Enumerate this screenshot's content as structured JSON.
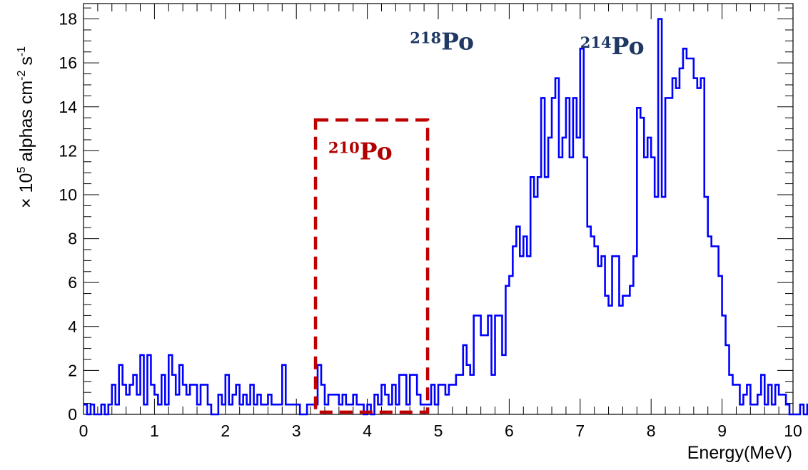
{
  "chart_data": {
    "type": "histogram",
    "xlabel": "Energy(MeV)",
    "ylabel": {
      "prefix": "× 10",
      "exp": "5",
      "unit": " alphas cm",
      "unit_exp": "-2",
      "unit2": " s",
      "unit2_exp": "-1"
    },
    "xlim": [
      0,
      10
    ],
    "ylim": [
      0,
      18.7
    ],
    "x_ticks": [
      0,
      1,
      2,
      3,
      4,
      5,
      6,
      7,
      8,
      9,
      10
    ],
    "y_ticks": [
      0,
      2,
      4,
      6,
      8,
      10,
      12,
      14,
      16,
      18
    ],
    "bin_width": 0.05,
    "series": [
      {
        "color": "#0000ff",
        "values": [
          0.45,
          0,
          0.45,
          0,
          0,
          0.45,
          0,
          0.45,
          1.35,
          0.45,
          2.25,
          1.35,
          0.9,
          1.35,
          1.8,
          0.9,
          2.7,
          0.45,
          2.7,
          1.35,
          0.9,
          0.45,
          1.8,
          0.45,
          2.7,
          1.8,
          0.9,
          2.25,
          1.35,
          0.9,
          1.35,
          1.35,
          0.45,
          1.35,
          1.35,
          0.45,
          0,
          0,
          0.9,
          0.45,
          1.8,
          0.45,
          0.9,
          1.35,
          0.45,
          0.9,
          0.45,
          1.35,
          0.45,
          0.9,
          0.45,
          0.45,
          0.9,
          0.45,
          0.45,
          0.45,
          2.25,
          0.45,
          0.45,
          0.45,
          0.45,
          0,
          0,
          0.45,
          0.45,
          0.45,
          2.25,
          1.35,
          0.45,
          0.9,
          0.9,
          0.9,
          0.45,
          0.9,
          0.45,
          0.45,
          0.9,
          0.45,
          0.45,
          0,
          0.45,
          0,
          0.9,
          0.45,
          1.35,
          0.9,
          0.45,
          1.35,
          0.45,
          1.8,
          1.8,
          0.45,
          1.8,
          1.8,
          0.9,
          0.45,
          0.45,
          0.45,
          1.35,
          0.45,
          1.35,
          1.35,
          0.9,
          1.35,
          1.35,
          1.8,
          1.8,
          3.15,
          2.25,
          1.8,
          4.5,
          4.5,
          3.6,
          3.6,
          4.5,
          1.8,
          4.5,
          4.5,
          2.7,
          5.85,
          6.3,
          7.65,
          8.55,
          7.2,
          8.1,
          7.2,
          10.8,
          9.9,
          10.8,
          14.4,
          10.8,
          12.6,
          14.4,
          15.3,
          11.7,
          12.6,
          14.4,
          11.7,
          14.4,
          12.6,
          16.65,
          11.7,
          8.55,
          8.1,
          7.65,
          6.75,
          7.2,
          5.4,
          4.95,
          7.2,
          7.2,
          4.95,
          5.4,
          5.4,
          5.85,
          7.2,
          13.95,
          13.5,
          11.7,
          12.6,
          11.7,
          9.9,
          18.0,
          9.9,
          14.4,
          14.4,
          15.3,
          14.85,
          15.75,
          16.65,
          16.2,
          16.2,
          15.3,
          14.85,
          15.3,
          9.9,
          8.1,
          7.65,
          7.65,
          6.3,
          4.5,
          3.15,
          1.8,
          1.35,
          1.35,
          0.45,
          0.9,
          1.35,
          0.45,
          0.45,
          0.9,
          1.8,
          0.45,
          1.35,
          0.45,
          1.35,
          0.9,
          0.9,
          0.45,
          0,
          0,
          0,
          0.45,
          0,
          0.45,
          0.45,
          0,
          0,
          0,
          0,
          0,
          0,
          0,
          0,
          0,
          0,
          0,
          0,
          0,
          0
        ]
      }
    ],
    "region": {
      "color": "#c00000",
      "x": [
        3.27,
        4.85
      ],
      "y": [
        0.1,
        13.4
      ]
    },
    "annotations": [
      {
        "name": "po210-label",
        "mass": "210",
        "symbol": "Po",
        "x": 3.45,
        "y": 11.6,
        "color": "#b00000"
      },
      {
        "name": "po218-label",
        "mass": "218",
        "symbol": "Po",
        "x": 4.6,
        "y": 16.6,
        "color": "#1f3864"
      },
      {
        "name": "po214-label",
        "mass": "214",
        "symbol": "Po",
        "x": 7.0,
        "y": 16.4,
        "color": "#1f3864"
      }
    ]
  }
}
